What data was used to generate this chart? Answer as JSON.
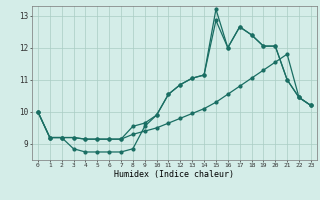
{
  "xlabel": "Humidex (Indice chaleur)",
  "background_color": "#d4ede8",
  "grid_color": "#aaccc4",
  "line_color": "#1a6e63",
  "xlim": [
    -0.5,
    23.5
  ],
  "ylim": [
    8.5,
    13.3
  ],
  "yticks": [
    9,
    10,
    11,
    12,
    13
  ],
  "xticks": [
    0,
    1,
    2,
    3,
    4,
    5,
    6,
    7,
    8,
    9,
    10,
    11,
    12,
    13,
    14,
    15,
    16,
    17,
    18,
    19,
    20,
    21,
    22,
    23
  ],
  "hours": [
    0,
    1,
    2,
    3,
    4,
    5,
    6,
    7,
    8,
    9,
    10,
    11,
    12,
    13,
    14,
    15,
    16,
    17,
    18,
    19,
    20,
    21,
    22,
    23
  ],
  "line_main": [
    10.0,
    9.2,
    9.2,
    8.85,
    8.75,
    8.75,
    8.75,
    8.75,
    8.85,
    9.55,
    9.9,
    10.55,
    10.85,
    11.05,
    11.15,
    13.2,
    12.0,
    12.65,
    12.4,
    12.05,
    12.05,
    11.0,
    10.45,
    10.2
  ],
  "line_high": [
    10.0,
    9.2,
    9.2,
    9.2,
    9.15,
    9.15,
    9.15,
    9.15,
    9.55,
    9.65,
    9.9,
    10.55,
    10.85,
    11.05,
    11.15,
    12.85,
    12.0,
    12.65,
    12.4,
    12.05,
    12.05,
    11.0,
    10.45,
    10.2
  ],
  "line_trend": [
    10.0,
    9.2,
    9.2,
    9.2,
    9.15,
    9.15,
    9.15,
    9.15,
    9.3,
    9.4,
    9.5,
    9.65,
    9.8,
    9.95,
    10.1,
    10.3,
    10.55,
    10.8,
    11.05,
    11.3,
    11.55,
    11.8,
    10.45,
    10.2
  ]
}
